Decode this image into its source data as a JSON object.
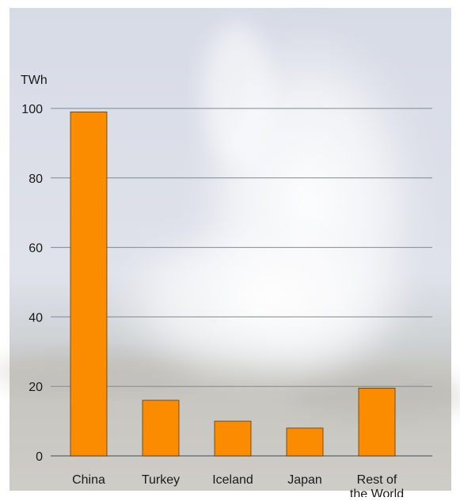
{
  "chart_data": {
    "type": "bar",
    "ylabel": "TWh",
    "ylim": [
      0,
      100
    ],
    "yticks": [
      0,
      20,
      40,
      60,
      80,
      100
    ],
    "grid": true,
    "categories": [
      "China",
      "Turkey",
      "Iceland",
      "Japan",
      "Rest of the World"
    ],
    "category_lines": [
      [
        "China"
      ],
      [
        "Turkey"
      ],
      [
        "Iceland"
      ],
      [
        "Japan"
      ],
      [
        "Rest of",
        "the World"
      ]
    ],
    "values": [
      99,
      16,
      10,
      8,
      19.5
    ],
    "colors": {
      "bar": "#fb8c00",
      "bar_stroke": "#5a3a10",
      "grid": "#7e8a92",
      "axis": "#5b6670"
    }
  }
}
